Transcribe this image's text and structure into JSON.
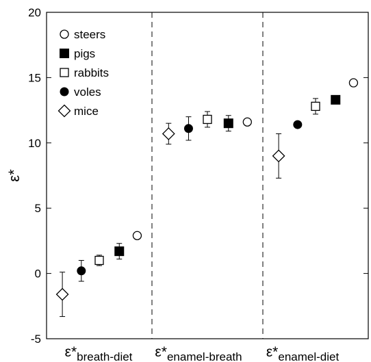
{
  "chart_data": {
    "type": "scatter",
    "title": "",
    "xlabel": "",
    "ylabel": "ε*",
    "ylim": [
      -5,
      20
    ],
    "yticks": [
      -5,
      0,
      5,
      10,
      15,
      20
    ],
    "grid": false,
    "legend_position": "top-left",
    "groups": [
      {
        "symbol": "ε*",
        "subscript": "breath-diet"
      },
      {
        "symbol": "ε*",
        "subscript": "enamel-breath"
      },
      {
        "symbol": "ε*",
        "subscript": "enamel-diet"
      }
    ],
    "series": [
      {
        "name": "steers",
        "marker": "circle-open",
        "points": [
          {
            "group": 0,
            "y": 2.9,
            "err": 0.2
          },
          {
            "group": 1,
            "y": 11.6,
            "err": 0.0
          },
          {
            "group": 2,
            "y": 14.6,
            "err": 0.0
          }
        ]
      },
      {
        "name": "pigs",
        "marker": "square-filled",
        "points": [
          {
            "group": 0,
            "y": 1.7,
            "err": 0.6
          },
          {
            "group": 1,
            "y": 11.5,
            "err": 0.6
          },
          {
            "group": 2,
            "y": 13.3,
            "err": 0.1
          }
        ]
      },
      {
        "name": "rabbits",
        "marker": "square-open",
        "points": [
          {
            "group": 0,
            "y": 1.0,
            "err": 0.4
          },
          {
            "group": 1,
            "y": 11.8,
            "err": 0.6
          },
          {
            "group": 2,
            "y": 12.8,
            "err": 0.6
          }
        ]
      },
      {
        "name": "voles",
        "marker": "circle-filled",
        "points": [
          {
            "group": 0,
            "y": 0.2,
            "err": 0.8
          },
          {
            "group": 1,
            "y": 11.1,
            "err": 0.9
          },
          {
            "group": 2,
            "y": 11.4,
            "err": 0.2
          }
        ]
      },
      {
        "name": "mice",
        "marker": "diamond-open",
        "points": [
          {
            "group": 0,
            "y": -1.6,
            "err": 1.7
          },
          {
            "group": 1,
            "y": 10.7,
            "err": 0.8
          },
          {
            "group": 2,
            "y": 9.0,
            "err": 1.7
          }
        ]
      }
    ]
  }
}
